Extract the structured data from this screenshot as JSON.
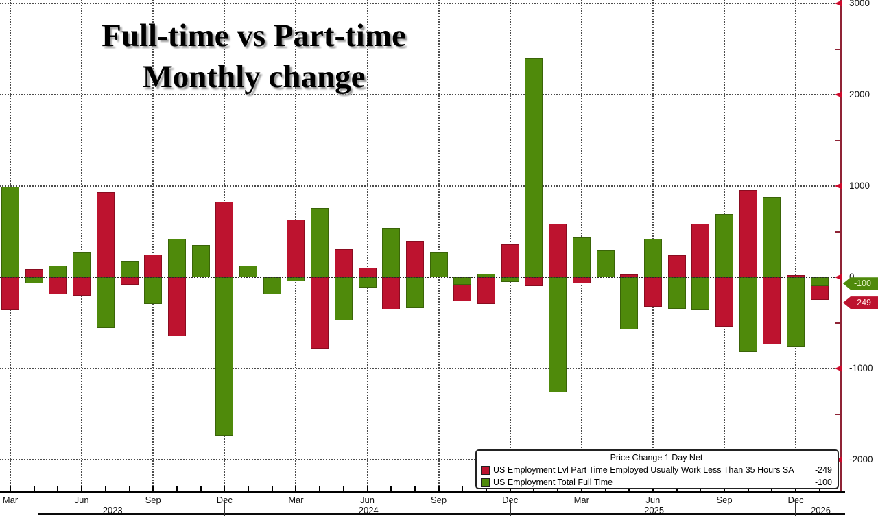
{
  "title": {
    "line1": "Full-time vs Part-time",
    "line2": "Monthly change"
  },
  "legend": {
    "title": "Price Change 1 Day Net",
    "items": [
      {
        "id": "part-time",
        "label": "US Employment Lvl Part Time Employed Usually Work Less Than 35 Hours SA",
        "value": "-249",
        "color": "#bd132f"
      },
      {
        "id": "full-time",
        "label": "US Employment Total Full Time",
        "value": "-100",
        "color": "#4f8a0b"
      }
    ]
  },
  "y_axis": {
    "major_ticks": [
      3000,
      2000,
      1000,
      0,
      -1000,
      -2000
    ],
    "minor_ticks": [
      2500,
      1500,
      500,
      -500,
      -1500
    ],
    "badges": [
      {
        "text": "-100",
        "value": -100,
        "bg": "#4f8a0b",
        "fg": "#e9f6ca"
      },
      {
        "text": "-249",
        "value": -249,
        "bg": "#bd132f",
        "fg": "#ffdede"
      }
    ]
  },
  "x_axis": {
    "quarter_labels": [
      {
        "label": "Mar",
        "month_index": 0
      },
      {
        "label": "Jun",
        "month_index": 3
      },
      {
        "label": "Sep",
        "month_index": 6
      },
      {
        "label": "Dec",
        "month_index": 9
      },
      {
        "label": "Mar",
        "month_index": 12
      },
      {
        "label": "Jun",
        "month_index": 15
      },
      {
        "label": "Sep",
        "month_index": 18
      },
      {
        "label": "Dec",
        "month_index": 21
      },
      {
        "label": "Mar",
        "month_index": 24
      },
      {
        "label": "Jun",
        "month_index": 27
      },
      {
        "label": "Sep",
        "month_index": 30
      },
      {
        "label": "Dec",
        "month_index": 33
      }
    ],
    "year_labels": [
      {
        "text": "2023",
        "month_index": 4.3
      },
      {
        "text": "2024",
        "month_index": 15.05
      },
      {
        "text": "2025",
        "month_index": 27.05
      },
      {
        "text": "2026",
        "month_index": 34.05
      }
    ],
    "year_boundary_month_indices": [
      9,
      21,
      33
    ]
  },
  "chart_data": {
    "type": "bar",
    "title": "Full-time vs Part-time Monthly change",
    "legend_position": "bottom-right",
    "grid": "dotted",
    "ylim": [
      -2350,
      3000
    ],
    "series_meta": [
      {
        "name": "US Employment Lvl Part Time Employed Usually Work Less Than 35 Hours SA",
        "key": "part_time",
        "color": "#bd132f",
        "last_value": -249
      },
      {
        "name": "US Employment Total Full Time",
        "key": "full_time",
        "color": "#4f8a0b",
        "last_value": -100
      }
    ],
    "months": [
      {
        "label": "Mar 2023",
        "part_time": -360,
        "full_time": 990
      },
      {
        "label": "Apr 2023",
        "part_time": 90,
        "full_time": -70
      },
      {
        "label": "May 2023",
        "part_time": -190,
        "full_time": 125
      },
      {
        "label": "Jun 2023",
        "part_time": -200,
        "full_time": 280
      },
      {
        "label": "Jul 2023",
        "part_time": 930,
        "full_time": -560
      },
      {
        "label": "Aug 2023",
        "part_time": -80,
        "full_time": 175
      },
      {
        "label": "Sep 2023",
        "part_time": 250,
        "full_time": -290
      },
      {
        "label": "Oct 2023",
        "part_time": -650,
        "full_time": 420
      },
      {
        "label": "Nov 2023",
        "part_time": 100,
        "full_time": 350
      },
      {
        "label": "Dec 2023",
        "part_time": 825,
        "full_time": -1740
      },
      {
        "label": "Jan 2024",
        "part_time": 60,
        "full_time": 130
      },
      {
        "label": "Feb 2024",
        "part_time": -80,
        "full_time": -185
      },
      {
        "label": "Mar 2024",
        "part_time": 630,
        "full_time": -45
      },
      {
        "label": "Apr 2024",
        "part_time": -785,
        "full_time": 760
      },
      {
        "label": "May 2024",
        "part_time": 305,
        "full_time": -475
      },
      {
        "label": "Jun 2024",
        "part_time": 105,
        "full_time": -115
      },
      {
        "label": "Jul 2024",
        "part_time": -355,
        "full_time": 535
      },
      {
        "label": "Aug 2024",
        "part_time": 400,
        "full_time": -340
      },
      {
        "label": "Sep 2024",
        "part_time": 120,
        "full_time": 280
      },
      {
        "label": "Oct 2024",
        "part_time": -265,
        "full_time": -85
      },
      {
        "label": "Nov 2024",
        "part_time": -290,
        "full_time": 35
      },
      {
        "label": "Dec 2024",
        "part_time": 360,
        "full_time": -55
      },
      {
        "label": "Jan 2025",
        "part_time": -100,
        "full_time": 2400
      },
      {
        "label": "Feb 2025",
        "part_time": 585,
        "full_time": -1265
      },
      {
        "label": "Mar 2025",
        "part_time": -65,
        "full_time": 435
      },
      {
        "label": "Apr 2025",
        "part_time": 80,
        "full_time": 295
      },
      {
        "label": "May 2025",
        "part_time": 30,
        "full_time": -570
      },
      {
        "label": "Jun 2025",
        "part_time": -320,
        "full_time": 420
      },
      {
        "label": "Jul 2025",
        "part_time": 240,
        "full_time": -345
      },
      {
        "label": "Aug 2025",
        "part_time": 585,
        "full_time": -360
      },
      {
        "label": "Sep 2025",
        "part_time": -545,
        "full_time": 690
      },
      {
        "label": "Oct 2025",
        "part_time": 955,
        "full_time": -820
      },
      {
        "label": "Nov 2025",
        "part_time": -735,
        "full_time": 880
      },
      {
        "label": "Dec 2025",
        "part_time": 25,
        "full_time": -760
      },
      {
        "label": "Jan 2026",
        "part_time": -249,
        "full_time": -100
      }
    ]
  }
}
